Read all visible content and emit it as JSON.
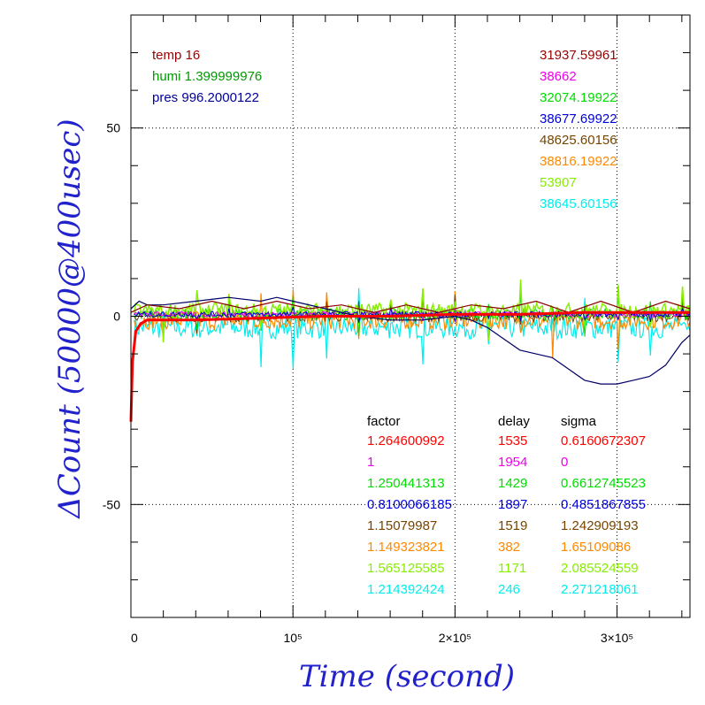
{
  "colors": {
    "background": "#ffffff",
    "axis_title": "#2222cc",
    "temp": "#990000",
    "humi": "#009900",
    "pres": "#000099",
    "c_red": "#ff0000",
    "c_magenta": "#ee00ee",
    "c_green": "#00dd00",
    "c_blue": "#0000dd",
    "c_brown": "#774400",
    "c_orange": "#ff8800",
    "c_lime": "#88ee00",
    "c_cyan": "#00eeee",
    "c_navy": "#000066",
    "c_darkred": "#880000"
  },
  "chart_data": {
    "type": "line",
    "xlabel": "Time (second)",
    "ylabel": "ΔCount (50000@400usec)",
    "xlim": [
      0,
      345000
    ],
    "ylim": [
      -80,
      80
    ],
    "grid": "dotted at labeled ticks",
    "x_ticks": [
      {
        "value": 0,
        "label": "0"
      },
      {
        "value": 100000,
        "label": "10⁵"
      },
      {
        "value": 200000,
        "label": "2×10⁵"
      },
      {
        "value": 300000,
        "label": "3×10⁵"
      }
    ],
    "y_ticks": [
      {
        "value": -50,
        "label": "-50"
      },
      {
        "value": 0,
        "label": "0"
      },
      {
        "value": 50,
        "label": "50"
      }
    ],
    "env": [
      {
        "text": "temp 16",
        "color_key": "temp"
      },
      {
        "text": "humi 1.399999976",
        "color_key": "humi"
      },
      {
        "text": "pres 996.2000122",
        "color_key": "pres"
      }
    ],
    "means": [
      {
        "text": "31937.59961",
        "color_key": "temp"
      },
      {
        "text": "38662",
        "color_key": "c_magenta"
      },
      {
        "text": "32074.19922",
        "color_key": "c_green"
      },
      {
        "text": "38677.69922",
        "color_key": "c_blue"
      },
      {
        "text": "48625.60156",
        "color_key": "c_brown"
      },
      {
        "text": "38816.19922",
        "color_key": "c_orange"
      },
      {
        "text": "53907",
        "color_key": "c_lime"
      },
      {
        "text": "38645.60156",
        "color_key": "c_cyan"
      }
    ],
    "table_headers": [
      "factor",
      "delay",
      "sigma"
    ],
    "table_rows": [
      {
        "factor": "1.264600992",
        "delay": "1535",
        "sigma": "0.6160672307",
        "color_key": "c_red"
      },
      {
        "factor": "1",
        "delay": "1954",
        "sigma": "0",
        "color_key": "c_magenta"
      },
      {
        "factor": "1.250441313",
        "delay": "1429",
        "sigma": "0.6612745523",
        "color_key": "c_green"
      },
      {
        "factor": "0.8100066185",
        "delay": "1897",
        "sigma": "0.4851867855",
        "color_key": "c_blue"
      },
      {
        "factor": "1.15079987",
        "delay": "1519",
        "sigma": "1.242909193",
        "color_key": "c_brown"
      },
      {
        "factor": "1.149323821",
        "delay": "382",
        "sigma": "1.65109086",
        "color_key": "c_orange"
      },
      {
        "factor": "1.565125585",
        "delay": "1171",
        "sigma": "2.085524559",
        "color_key": "c_lime"
      },
      {
        "factor": "1.214392424",
        "delay": "246",
        "sigma": "2.271218061",
        "color_key": "c_cyan"
      }
    ],
    "series": [
      {
        "color_key": "c_navy",
        "x": [
          0,
          5000,
          10000,
          20000,
          40000,
          60000,
          80000,
          90000,
          100000,
          120000,
          140000,
          160000,
          180000,
          200000,
          210000,
          220000,
          230000,
          240000,
          250000,
          260000,
          270000,
          280000,
          290000,
          300000,
          310000,
          320000,
          330000,
          340000,
          345000
        ],
        "values": [
          2,
          4,
          3,
          3,
          4,
          5,
          4,
          5,
          4,
          2,
          0,
          -1,
          -1,
          0,
          -1,
          -3,
          -6,
          -9,
          -10,
          -11,
          -14,
          -17,
          -18,
          -18,
          -17,
          -16,
          -13,
          -7,
          -5
        ]
      },
      {
        "color_key": "c_darkred",
        "x": [
          0,
          10000,
          30000,
          50000,
          70000,
          90000,
          110000,
          130000,
          150000,
          170000,
          190000,
          210000,
          230000,
          250000,
          270000,
          290000,
          310000,
          330000,
          345000
        ],
        "values": [
          1,
          3,
          2,
          4,
          2,
          4,
          2,
          3,
          1,
          3,
          1,
          3,
          2,
          4,
          1,
          4,
          1,
          4,
          2
        ]
      },
      {
        "color_key": "c_red",
        "x": [
          0,
          1000,
          3000,
          6000,
          10000,
          20000,
          40000,
          80000,
          120000,
          160000,
          200000,
          240000,
          280000,
          320000,
          345000
        ],
        "values": [
          -28,
          -12,
          -4,
          -2,
          -1,
          -1,
          -1,
          -0.5,
          0,
          0,
          0.5,
          0.5,
          1,
          1,
          1
        ]
      }
    ]
  }
}
